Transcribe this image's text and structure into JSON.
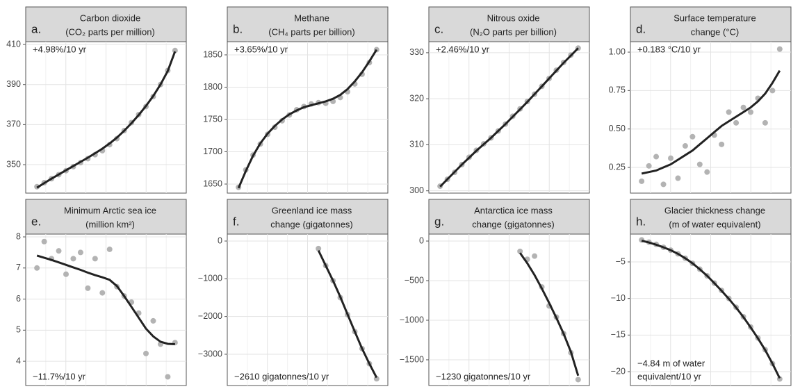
{
  "chart_data": [
    {
      "type": "scatter",
      "letter": "a.",
      "title": [
        "Carbon dioxide",
        "(CO₂ parts per million)"
      ],
      "annotation": "+4.98%/10 yr",
      "annotation_corner": "top-left",
      "grid": true,
      "ylim": [
        335.8,
        411.4
      ],
      "yticks": [
        350,
        370,
        390,
        410
      ],
      "points": {
        "color": "#b3b3b3",
        "values": [
          339,
          341,
          343,
          345,
          347,
          349,
          351,
          353,
          355,
          357,
          360,
          363,
          367,
          371,
          375,
          379,
          384,
          390,
          397,
          407
        ]
      },
      "trend": {
        "color": "#222222",
        "values": [
          338.5,
          340.8,
          343,
          345.1,
          347.2,
          349.3,
          351.4,
          353.5,
          355.7,
          358,
          360.6,
          363.5,
          366.9,
          370.7,
          374.8,
          379.3,
          384.3,
          390,
          396.8,
          406.5
        ]
      }
    },
    {
      "type": "scatter",
      "letter": "b.",
      "title": [
        "Methane",
        "(CH₄ parts per billion)"
      ],
      "annotation": "+3.65%/10 yr",
      "annotation_corner": "top-left",
      "grid": true,
      "ylim": [
        1636,
        1870.4
      ],
      "yticks": [
        1650,
        1700,
        1750,
        1800,
        1850
      ],
      "points": {
        "color": "#b3b3b3",
        "values": [
          1645,
          1672,
          1695,
          1712,
          1727,
          1738,
          1748,
          1757,
          1765,
          1770,
          1774,
          1776,
          1775,
          1778,
          1784,
          1793,
          1805,
          1820,
          1838,
          1858
        ]
      },
      "trend": {
        "color": "#222222",
        "values": [
          1644,
          1670,
          1694,
          1713,
          1728,
          1740,
          1750,
          1758,
          1764,
          1769,
          1772,
          1775,
          1778,
          1782,
          1788,
          1797,
          1809,
          1823,
          1840,
          1858
        ]
      }
    },
    {
      "type": "scatter",
      "letter": "c.",
      "title": [
        "Nitrous oxide",
        "(N₂O parts per billion)"
      ],
      "annotation": "+2.46%/10 yr",
      "annotation_corner": "top-left",
      "grid": true,
      "ylim": [
        299.5,
        332.4
      ],
      "yticks": [
        300,
        310,
        320,
        330
      ],
      "points": {
        "color": "#b3b3b3",
        "values": [
          301,
          302.5,
          304,
          305.7,
          307.3,
          308.8,
          310.2,
          311.5,
          313,
          314.5,
          316.2,
          317.8,
          319.4,
          321,
          322.7,
          324.4,
          326.2,
          327.9,
          329.5,
          331
        ]
      },
      "trend": {
        "color": "#222222",
        "values": [
          300.9,
          302.5,
          304.1,
          305.7,
          307.2,
          308.7,
          310.1,
          311.5,
          313,
          314.5,
          316.1,
          317.7,
          319.3,
          321,
          322.7,
          324.4,
          326.1,
          327.8,
          329.4,
          331
        ]
      }
    },
    {
      "type": "scatter",
      "letter": "d.",
      "title": [
        "Surface temperature",
        "change (°C)"
      ],
      "annotation": "+0.183 °C/10 yr",
      "annotation_corner": "top-left",
      "grid": true,
      "ylim": [
        0.083,
        1.068
      ],
      "yticks": [
        {
          "value": 0.25,
          "label": "0.25"
        },
        {
          "value": 0.5,
          "label": "0.50"
        },
        {
          "value": 0.75,
          "label": "0.75"
        },
        {
          "value": 1,
          "label": "1.00"
        }
      ],
      "points": {
        "color": "#b3b3b3",
        "values": [
          0.16,
          0.26,
          0.32,
          0.14,
          0.31,
          0.18,
          0.39,
          0.45,
          0.27,
          0.22,
          0.46,
          0.4,
          0.61,
          0.54,
          0.64,
          0.61,
          0.7,
          0.54,
          0.75,
          1.02
        ]
      },
      "trend": {
        "color": "#222222",
        "values": [
          0.21,
          0.22,
          0.23,
          0.25,
          0.27,
          0.3,
          0.33,
          0.36,
          0.4,
          0.44,
          0.48,
          0.52,
          0.55,
          0.58,
          0.61,
          0.64,
          0.68,
          0.73,
          0.8,
          0.88
        ]
      }
    },
    {
      "type": "scatter",
      "letter": "e.",
      "title": [
        "Minimum Arctic sea ice",
        "(million km²)"
      ],
      "annotation": "−11.7%/10 yr",
      "annotation_corner": "bottom-left",
      "grid": true,
      "ylim": [
        3.22,
        8.09
      ],
      "yticks": [
        4,
        5,
        6,
        7,
        8
      ],
      "points": {
        "color": "#b3b3b3",
        "values": [
          7,
          7.85,
          7.3,
          7.55,
          6.8,
          7.3,
          7.5,
          6.35,
          7.3,
          6.2,
          7.6,
          6.4,
          6.1,
          5.9,
          5.55,
          4.25,
          5.3,
          4.55,
          3.5,
          4.6
        ]
      },
      "trend": {
        "color": "#222222",
        "values": [
          7.4,
          7.33,
          7.26,
          7.18,
          7.1,
          7.02,
          6.94,
          6.85,
          6.77,
          6.7,
          6.62,
          6.42,
          6.1,
          5.75,
          5.4,
          5.05,
          4.8,
          4.63,
          4.56,
          4.55
        ]
      }
    },
    {
      "type": "scatter",
      "letter": "f.",
      "title": [
        "Greenland ice mass",
        "change (gigatonnes)"
      ],
      "annotation": "−2610 gigatonnes/10 yr",
      "annotation_corner": "bottom-left",
      "grid": true,
      "ylim": [
        -3829,
        184
      ],
      "yticks": [
        0,
        {
          "value": -1000,
          "label": "−1000"
        },
        {
          "value": -2000,
          "label": "−2000"
        },
        {
          "value": -3000,
          "label": "−3000"
        }
      ],
      "points": {
        "color": "#b3b3b3",
        "values": [
          null,
          null,
          null,
          null,
          null,
          null,
          null,
          null,
          null,
          null,
          null,
          -200,
          -650,
          -1050,
          -1500,
          -1950,
          -2400,
          -2850,
          -3250,
          -3650
        ]
      },
      "trend": {
        "color": "#222222",
        "values": [
          null,
          null,
          null,
          null,
          null,
          null,
          null,
          null,
          null,
          null,
          null,
          -250,
          -650,
          -1050,
          -1480,
          -1940,
          -2400,
          -2850,
          -3250,
          -3620
        ]
      }
    },
    {
      "type": "scatter",
      "letter": "g.",
      "title": [
        "Antarctica ice mass",
        "change (gigatonnes)"
      ],
      "annotation": "−1230 gigatonnes/10 yr",
      "annotation_corner": "bottom-left",
      "grid": true,
      "ylim": [
        -1825,
        88
      ],
      "yticks": [
        0,
        {
          "value": -500,
          "label": "−500"
        },
        {
          "value": -1000,
          "label": "−1000"
        },
        {
          "value": -1500,
          "label": "−1500"
        }
      ],
      "points": {
        "color": "#b3b3b3",
        "values": [
          null,
          null,
          null,
          null,
          null,
          null,
          null,
          null,
          null,
          null,
          null,
          -130,
          -230,
          -190,
          -580,
          -820,
          -960,
          -1170,
          -1410,
          -1750
        ]
      },
      "trend": {
        "color": "#222222",
        "values": [
          null,
          null,
          null,
          null,
          null,
          null,
          null,
          null,
          null,
          null,
          null,
          -150,
          -280,
          -430,
          -600,
          -780,
          -970,
          -1170,
          -1400,
          -1700
        ]
      }
    },
    {
      "type": "scatter",
      "letter": "h.",
      "title": [
        "Glacier thickness change",
        "(m of water equivalent)"
      ],
      "annotation": [
        "−4.84 m of water",
        "equivalent/10 yr"
      ],
      "annotation_corner": "bottom-left",
      "grid": true,
      "ylim": [
        -21.9,
        -1.2
      ],
      "yticks": [
        {
          "value": -5,
          "label": "−5"
        },
        {
          "value": -10,
          "label": "−10"
        },
        {
          "value": -15,
          "label": "−15"
        },
        {
          "value": -20,
          "label": "−20"
        }
      ],
      "points": {
        "color": "#b3b3b3",
        "values": [
          -2,
          -2.3,
          -2.6,
          -3,
          -3.4,
          -3.9,
          -4.5,
          -5.2,
          -6,
          -6.9,
          -7.9,
          -8.9,
          -10,
          -11.2,
          -12.5,
          -13.9,
          -15.4,
          -17,
          -18.9,
          -21
        ]
      },
      "trend": {
        "color": "#222222",
        "values": [
          -2.1,
          -2.35,
          -2.65,
          -3,
          -3.4,
          -3.9,
          -4.5,
          -5.2,
          -6,
          -6.9,
          -7.9,
          -8.95,
          -10.05,
          -11.25,
          -12.55,
          -13.95,
          -15.45,
          -17.05,
          -18.9,
          -20.9
        ]
      }
    }
  ]
}
